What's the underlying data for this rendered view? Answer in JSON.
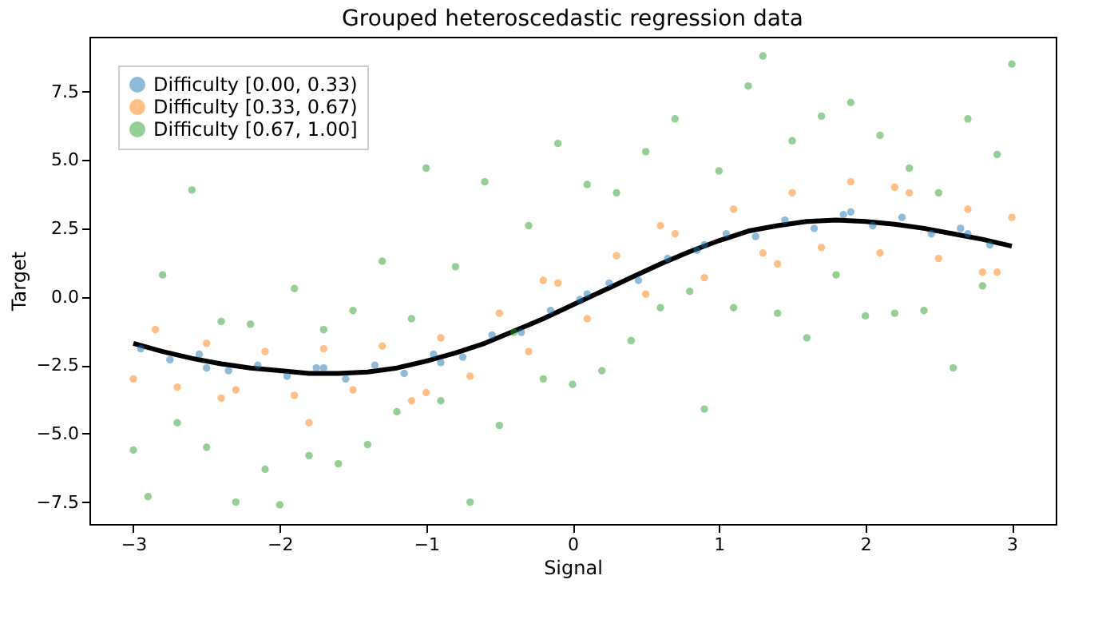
{
  "chart_data": {
    "type": "scatter",
    "title": "Grouped heteroscedastic regression data",
    "xlabel": "Signal",
    "ylabel": "Target",
    "xlim": [
      -3.3,
      3.3
    ],
    "xticks": [
      -3,
      -2,
      -1,
      0,
      1,
      2,
      3
    ],
    "ylim": [
      -8.3,
      9.5
    ],
    "yticks": [
      {
        "value": -7.5,
        "label": "−7.5"
      },
      {
        "value": -5,
        "label": "−5.0"
      },
      {
        "value": -2.5,
        "label": "−2.5"
      },
      {
        "value": 0,
        "label": "0.0"
      },
      {
        "value": 2.5,
        "label": "2.5"
      },
      {
        "value": 5,
        "label": "5.0"
      },
      {
        "value": 7.5,
        "label": "7.5"
      }
    ],
    "grid": false,
    "legend": "top left",
    "marker": "circle",
    "series": [
      {
        "name": "Difficulty [0.00, 0.33)",
        "color": "#1f77b4",
        "x": [
          -2.95,
          -2.75,
          -2.55,
          -2.35,
          -2.15,
          -1.95,
          -1.75,
          -1.55,
          -1.35,
          -1.15,
          -0.95,
          -0.75,
          -0.55,
          -0.35,
          -0.15,
          0.05,
          0.25,
          0.45,
          0.65,
          0.85,
          1.05,
          1.25,
          1.45,
          1.65,
          1.85,
          2.05,
          2.25,
          2.45,
          2.65,
          2.85,
          -2.5,
          -1.7,
          -0.9,
          0.1,
          0.9,
          1.9,
          2.7
        ],
        "values": [
          -1.9,
          -2.3,
          -2.1,
          -2.7,
          -2.5,
          -2.9,
          -2.6,
          -3.0,
          -2.5,
          -2.8,
          -2.1,
          -2.2,
          -1.4,
          -1.3,
          -0.5,
          -0.1,
          0.5,
          0.6,
          1.4,
          1.7,
          2.3,
          2.2,
          2.8,
          2.5,
          3.0,
          2.6,
          2.9,
          2.3,
          2.5,
          1.9,
          -2.6,
          -2.6,
          -2.4,
          0.1,
          1.9,
          3.1,
          2.3
        ]
      },
      {
        "name": "Difficulty [0.33, 0.67)",
        "color": "#ff7f0e",
        "x": [
          -3.0,
          -2.85,
          -2.7,
          -2.5,
          -2.3,
          -2.1,
          -1.9,
          -1.7,
          -1.5,
          -1.3,
          -1.1,
          -0.9,
          -0.7,
          -0.5,
          -0.3,
          -0.1,
          0.1,
          0.3,
          0.5,
          0.7,
          0.9,
          1.1,
          1.3,
          1.5,
          1.7,
          1.9,
          2.1,
          2.3,
          2.5,
          2.7,
          2.9,
          -2.4,
          -1.8,
          -1.0,
          -0.2,
          0.6,
          1.4,
          2.2,
          2.8,
          3.0
        ],
        "values": [
          -3.0,
          -1.2,
          -3.3,
          -1.7,
          -3.4,
          -2.0,
          -3.6,
          -1.9,
          -3.4,
          -1.8,
          -3.8,
          -1.5,
          -2.9,
          -0.6,
          -2.0,
          0.5,
          -0.8,
          1.5,
          0.1,
          2.3,
          0.7,
          3.2,
          1.6,
          3.8,
          1.8,
          4.2,
          1.6,
          3.8,
          1.4,
          3.2,
          0.9,
          -3.7,
          -4.6,
          -3.5,
          0.6,
          2.6,
          1.2,
          4.0,
          0.9,
          2.9
        ]
      },
      {
        "name": "Difficulty [0.67, 1.00]",
        "color": "#2ca02c",
        "x": [
          -3.0,
          -2.9,
          -2.8,
          -2.7,
          -2.6,
          -2.5,
          -2.4,
          -2.3,
          -2.2,
          -2.1,
          -2.0,
          -1.9,
          -1.8,
          -1.7,
          -1.6,
          -1.5,
          -1.4,
          -1.3,
          -1.2,
          -1.1,
          -1.0,
          -0.9,
          -0.8,
          -0.7,
          -0.6,
          -0.5,
          -0.4,
          -0.3,
          -0.2,
          -0.1,
          0.0,
          0.1,
          0.2,
          0.3,
          0.4,
          0.5,
          0.6,
          0.7,
          0.8,
          0.9,
          1.0,
          1.1,
          1.2,
          1.3,
          1.4,
          1.5,
          1.6,
          1.7,
          1.8,
          1.9,
          2.0,
          2.1,
          2.2,
          2.3,
          2.4,
          2.5,
          2.6,
          2.7,
          2.8,
          2.9,
          3.0
        ],
        "values": [
          -5.6,
          -7.3,
          0.8,
          -4.6,
          3.9,
          -5.5,
          -0.9,
          -7.5,
          -1.0,
          -6.3,
          -7.6,
          0.3,
          -5.8,
          -1.2,
          -6.1,
          -0.5,
          -5.4,
          1.3,
          -4.2,
          -0.8,
          4.7,
          -3.8,
          1.1,
          -7.5,
          4.2,
          -4.7,
          -1.3,
          2.6,
          -3.0,
          5.6,
          -3.2,
          4.1,
          -2.7,
          3.8,
          -1.6,
          5.3,
          -0.4,
          6.5,
          0.2,
          -4.1,
          4.6,
          -0.4,
          7.7,
          8.8,
          -0.6,
          5.7,
          -1.5,
          6.6,
          0.8,
          7.1,
          -0.7,
          5.9,
          -0.6,
          4.7,
          -0.5,
          3.8,
          -2.6,
          6.5,
          0.4,
          5.2,
          8.5
        ]
      },
      {
        "type": "line",
        "marker": "none",
        "color": "#000000",
        "x": [
          -3.0,
          -2.8,
          -2.6,
          -2.4,
          -2.2,
          -2.0,
          -1.8,
          -1.6,
          -1.4,
          -1.2,
          -1.0,
          -0.8,
          -0.6,
          -0.4,
          -0.2,
          0.0,
          0.2,
          0.4,
          0.6,
          0.8,
          1.0,
          1.2,
          1.4,
          1.6,
          1.8,
          2.0,
          2.2,
          2.4,
          2.6,
          2.8,
          3.0
        ],
        "values": [
          -1.7,
          -2.0,
          -2.25,
          -2.45,
          -2.6,
          -2.7,
          -2.8,
          -2.8,
          -2.75,
          -2.6,
          -2.35,
          -2.05,
          -1.7,
          -1.25,
          -0.8,
          -0.3,
          0.2,
          0.7,
          1.2,
          1.65,
          2.05,
          2.4,
          2.6,
          2.75,
          2.8,
          2.75,
          2.65,
          2.5,
          2.3,
          2.1,
          1.85
        ]
      }
    ]
  }
}
